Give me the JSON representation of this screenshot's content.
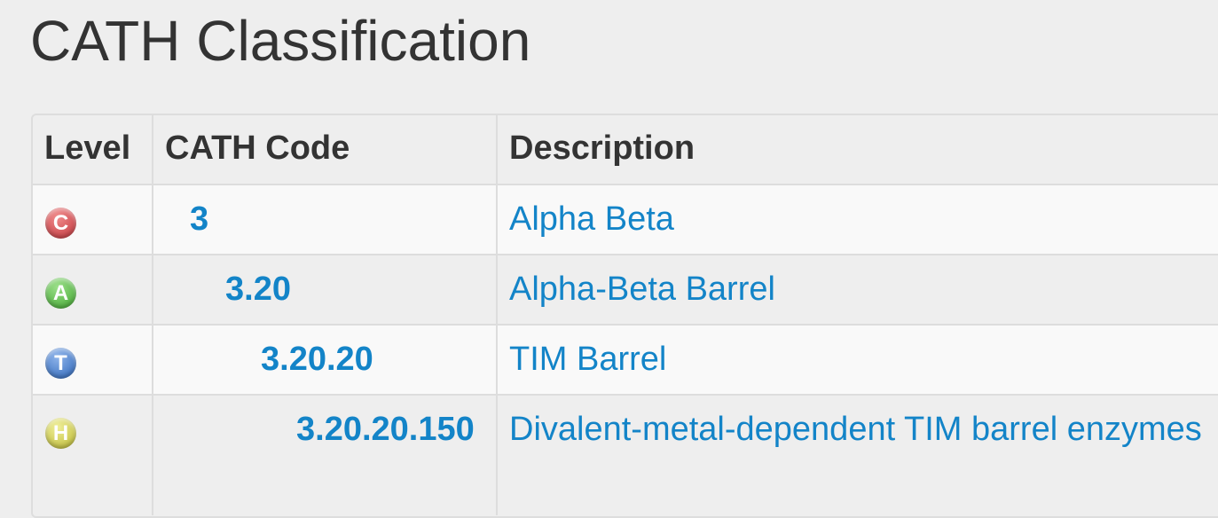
{
  "page_title": "CATH Classification",
  "table": {
    "headers": {
      "level": "Level",
      "code": "CATH Code",
      "description": "Description"
    },
    "rows": [
      {
        "level_badge": "C",
        "level_icon": "class-c-icon",
        "code": "3",
        "description": "Alpha Beta"
      },
      {
        "level_badge": "A",
        "level_icon": "architecture-a-icon",
        "code": "3.20",
        "description": "Alpha-Beta Barrel"
      },
      {
        "level_badge": "T",
        "level_icon": "topology-t-icon",
        "code": "3.20.20",
        "description": "TIM Barrel"
      },
      {
        "level_badge": "H",
        "level_icon": "homology-h-icon",
        "code": "3.20.20.150",
        "description": "Divalent-metal-dependent TIM barrel enzymes"
      }
    ]
  },
  "colors": {
    "link": "#1384c8",
    "class_badge": "#c0333a",
    "architecture_badge": "#3da32c",
    "topology_badge": "#2a64b8",
    "homology_badge": "#b8b52c"
  }
}
